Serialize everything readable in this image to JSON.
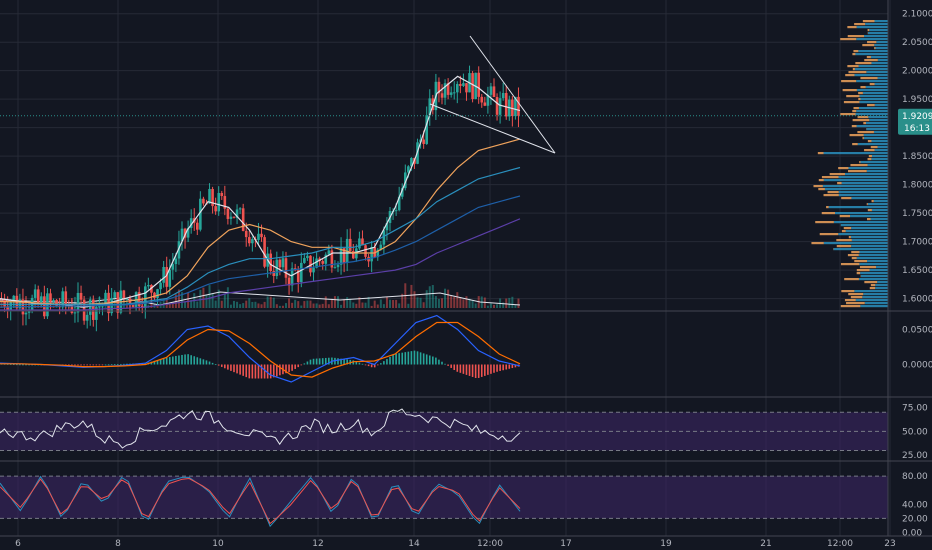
{
  "chart_data": [
    {
      "type": "candlestick",
      "panel": "price",
      "ylim": [
        1.58,
        2.11
      ],
      "y_ticks": [
        "2.1000",
        "2.0500",
        "2.0000",
        "1.9500",
        "1.9000",
        "1.8500",
        "1.8000",
        "1.7500",
        "1.7000",
        "1.6500",
        "1.6000"
      ],
      "last_price": "1.9209",
      "countdown": "16:13",
      "series": [
        {
          "name": "",
          "kind": "moving-average",
          "color": "#e0e3eb",
          "values": [
            1.6,
            1.595,
            1.59,
            1.59,
            1.585,
            1.59,
            1.6,
            1.61,
            1.64,
            1.72,
            1.77,
            1.76,
            1.72,
            1.66,
            1.64,
            1.66,
            1.68,
            1.68,
            1.69,
            1.76,
            1.85,
            1.96,
            1.99,
            1.97,
            1.94,
            1.93
          ]
        },
        {
          "name": "",
          "kind": "moving-average",
          "color": "#f0a35c",
          "values": [
            1.595,
            1.594,
            1.592,
            1.59,
            1.59,
            1.592,
            1.595,
            1.6,
            1.61,
            1.64,
            1.69,
            1.72,
            1.73,
            1.72,
            1.7,
            1.69,
            1.69,
            1.68,
            1.68,
            1.7,
            1.74,
            1.79,
            1.83,
            1.86,
            1.87,
            1.88
          ]
        },
        {
          "name": "",
          "kind": "moving-average",
          "color": "#2a8fbd",
          "values": [
            1.59,
            1.59,
            1.59,
            1.59,
            1.59,
            1.59,
            1.59,
            1.595,
            1.6,
            1.62,
            1.645,
            1.66,
            1.67,
            1.67,
            1.675,
            1.68,
            1.69,
            1.69,
            1.7,
            1.72,
            1.74,
            1.77,
            1.79,
            1.81,
            1.82,
            1.83
          ]
        },
        {
          "name": "",
          "kind": "moving-average",
          "color": "#1e5fa8",
          "values": [
            1.585,
            1.586,
            1.586,
            1.587,
            1.587,
            1.588,
            1.589,
            1.592,
            1.598,
            1.61,
            1.625,
            1.635,
            1.64,
            1.645,
            1.65,
            1.655,
            1.66,
            1.665,
            1.672,
            1.685,
            1.7,
            1.72,
            1.74,
            1.76,
            1.77,
            1.78
          ]
        },
        {
          "name": "",
          "kind": "moving-average",
          "color": "#5b3fa8",
          "values": [
            1.58,
            1.58,
            1.58,
            1.58,
            1.58,
            1.582,
            1.583,
            1.585,
            1.59,
            1.595,
            1.6,
            1.61,
            1.615,
            1.62,
            1.625,
            1.63,
            1.635,
            1.64,
            1.645,
            1.65,
            1.66,
            1.68,
            1.695,
            1.71,
            1.725,
            1.74
          ]
        }
      ]
    },
    {
      "type": "histogram",
      "panel": "macd",
      "ylim": [
        -0.045,
        0.075
      ],
      "y_ticks": [
        "0.0500",
        "0.0000"
      ],
      "series": [
        {
          "name": "",
          "color": "#2962ff",
          "values": [
            0.002,
            0.001,
            0.0,
            -0.002,
            -0.004,
            -0.003,
            -0.001,
            0.002,
            0.02,
            0.05,
            0.055,
            0.04,
            0.01,
            -0.015,
            -0.025,
            -0.01,
            0.005,
            0.01,
            0.0,
            0.03,
            0.06,
            0.07,
            0.05,
            0.02,
            0.005,
            -0.002
          ]
        },
        {
          "name": "",
          "color": "#ff6d00",
          "values": [
            0.001,
            0.001,
            0.0,
            -0.001,
            -0.003,
            -0.003,
            -0.002,
            0.0,
            0.01,
            0.035,
            0.05,
            0.048,
            0.03,
            0.005,
            -0.015,
            -0.018,
            -0.005,
            0.004,
            0.005,
            0.015,
            0.04,
            0.06,
            0.06,
            0.04,
            0.015,
            0.001
          ]
        }
      ]
    },
    {
      "type": "line",
      "panel": "rsi",
      "ylim": [
        20,
        85
      ],
      "y_ticks": [
        "75.00",
        "50.00",
        "25.00"
      ],
      "series": [
        {
          "name": "",
          "color": "#e0e3eb",
          "values": [
            52,
            46,
            45,
            55,
            60,
            42,
            38,
            52,
            58,
            70,
            66,
            55,
            48,
            40,
            45,
            58,
            52,
            60,
            48,
            72,
            68,
            62,
            58,
            50,
            46,
            45
          ]
        }
      ]
    },
    {
      "type": "line",
      "panel": "stochastic",
      "ylim": [
        -5,
        100
      ],
      "y_ticks": [
        "80.00",
        "40.00",
        "20.00",
        "0.00"
      ],
      "series": [
        {
          "name": "",
          "color": "#2a8fbd",
          "values": [
            70,
            30,
            82,
            18,
            75,
            40,
            85,
            10,
            72,
            80,
            60,
            20,
            78,
            8,
            45,
            80,
            25,
            82,
            12,
            75,
            20,
            70,
            55,
            10,
            68,
            30
          ]
        },
        {
          "name": "",
          "color": "#ef5350",
          "values": [
            65,
            35,
            78,
            22,
            70,
            45,
            80,
            15,
            68,
            78,
            62,
            25,
            72,
            12,
            40,
            76,
            30,
            78,
            16,
            70,
            25,
            66,
            58,
            14,
            64,
            34
          ]
        }
      ]
    }
  ],
  "x_ticks": [
    "6",
    "8",
    "10",
    "12",
    "14",
    "12:00",
    "17",
    "19",
    "21",
    "12:00",
    "23"
  ],
  "colors": {
    "background": "#131722",
    "grid": "#262a36",
    "up": "#26a69a",
    "down": "#ef5350",
    "label": "#b2b5be",
    "band": "#3a2563",
    "trendline": "#e0e3eb",
    "volume_profile_up": "#2a8fbd",
    "volume_profile_down": "#f0a35c",
    "price_tag": "#2a8f8a"
  }
}
